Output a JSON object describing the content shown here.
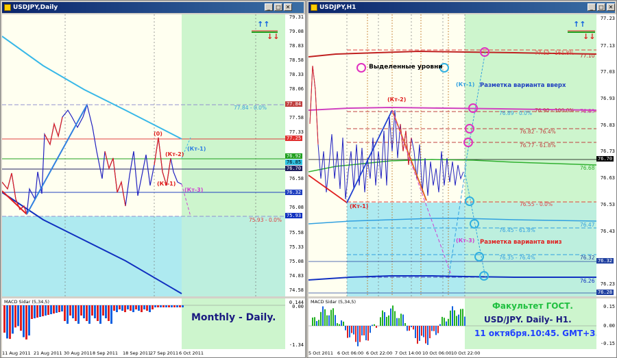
{
  "left": {
    "title": "USDJPY,Daily",
    "prices": [
      "79.31",
      "79.08",
      "78.83",
      "78.58",
      "78.33",
      "78.06",
      "77.84",
      "77.58",
      "77.33",
      "77.08",
      "76.83",
      "76.58",
      "76.33",
      "76.08",
      "75.83",
      "75.58",
      "75.33",
      "75.08",
      "74.83",
      "74.58"
    ],
    "tags": {
      "p1": "77.84",
      "p2": "77.25",
      "p3": "76.92",
      "p4": "76.85",
      "p5": "76.70",
      "p6": "76.32",
      "p7": "75.93"
    },
    "labels": {
      "zero": "(0)",
      "kt2": "(Кт-2)",
      "kt1b": "(Кт-1)",
      "kt1": "(Кт-1)",
      "kt3": "(Кт-3)",
      "lvl_top": "77.84 - 0.0%",
      "lvl_bot": "75.93 - 0.0%"
    },
    "caption": "Monthly - Daily.",
    "macd": {
      "title": "MACD Sidar (5,34,5)",
      "hi": "0.144",
      "lo": "-1.34",
      "zero": "0.00"
    },
    "dates": [
      "11 Aug 2011",
      "21 Aug 2011",
      "30 Aug 2011",
      "8 Sep 2011",
      "18 Sep 2011",
      "27 Sep 2011",
      "6 Oct 2011"
    ],
    "arrows": {
      "up": "↑↑",
      "down": "↓↓"
    }
  },
  "right": {
    "title": "USDJPY,H1",
    "prices": [
      "77.23",
      "77.13",
      "77.03",
      "76.93",
      "76.83",
      "76.73",
      "76.63",
      "76.53",
      "76.43",
      "76.33",
      "76.23"
    ],
    "tags": {
      "p1": "77.10",
      "p2": "76.89",
      "p3": "76.70",
      "p4": "76.68",
      "p5": "76.47",
      "p6": "76.32",
      "p7": "76.28"
    },
    "legend": "Выделенные уровни",
    "up_label": "(Кт-1)",
    "up_text": "Разметка варианта вверх",
    "down_label": "(Кт-3)",
    "down_text": "Разметка варианта вниз",
    "kt2": "(Кт-2)",
    "kt1": "(Кт-1)",
    "levels": {
      "l1": "77.12 - 161.8%",
      "l1v": "77.10",
      "l2": "76.90 - 100.0%",
      "l2v": "76.89",
      "l3": "76.89 - 0.0%",
      "l4": "76.82 - 76.4%",
      "l5": "76.77 - 61.8%",
      "l6": "76.68",
      "l7": "76.55 - 0.0%",
      "l8": "76.45 - 61.8%",
      "l8v": "76.47",
      "l9": "76.35 - 76.4%",
      "l9v": "76.32",
      "l10": "76.26"
    },
    "macd": {
      "title": "MACD Sidar (5,34,5)",
      "hi": "0.15",
      "zero": "0.00",
      "lo": "-0.15"
    },
    "caption1": "Факультет ГОСТ.",
    "caption2": "USD/JPY. Daily- H1.",
    "caption3": "11 октября.10:45. GMT+3.",
    "dates": [
      "5 Oct 2011",
      "6 Oct 06:00",
      "6 Oct 22:00",
      "7 Oct 14:00",
      "10 Oct 06:00",
      "10 Oct 22:00"
    ],
    "arrows": {
      "up": "↑↑",
      "down": "↓↓"
    }
  },
  "colors": {
    "title_bar": "#0a246a",
    "bg": "#fffff0",
    "green_zone": "#cdf5cd",
    "cyan_zone": "#aeeaf0"
  }
}
